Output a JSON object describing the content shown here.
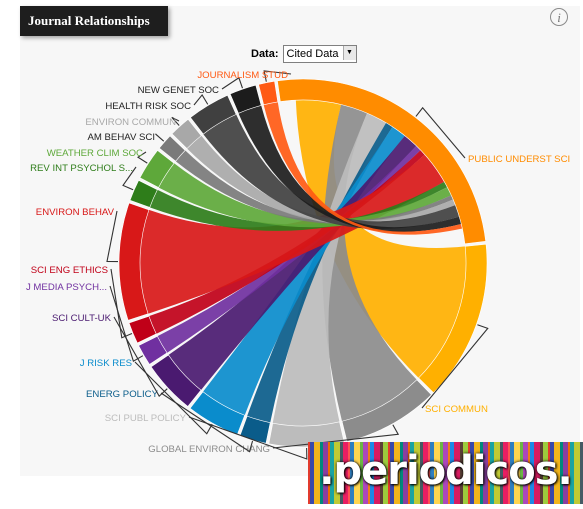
{
  "header": {
    "title": "Journal Relationships",
    "info_icon": "info-icon",
    "info_symbol": "i"
  },
  "controls": {
    "data_label": "Data:",
    "data_value": "Cited Data"
  },
  "chart_data": {
    "type": "chord",
    "title": "Journal Relationships",
    "focus_journal": "PUBLIC UNDERST SCI",
    "groups": [
      {
        "name": "PUBLIC UNDERST SCI",
        "share": 27,
        "color": "#ff8c00"
      },
      {
        "name": "SCI COMMUN",
        "share": 15,
        "color": "#ffb000"
      },
      {
        "name": "GLOBAL ENVIRON CHANG",
        "share": 9,
        "color": "#8c8c8c"
      },
      {
        "name": "SCI PUBL POLICY",
        "share": 7,
        "color": "#bcbcbc"
      },
      {
        "name": "ENERG POLICY",
        "share": 2.5,
        "color": "#0a5c8a"
      },
      {
        "name": "J RISK RES",
        "share": 5,
        "color": "#0a8ccc"
      },
      {
        "name": "SCI CULT-UK",
        "share": 5,
        "color": "#4a1a70"
      },
      {
        "name": "J MEDIA PSYCH...",
        "share": 2,
        "color": "#7030a0"
      },
      {
        "name": "SCI ENG ETHICS",
        "share": 2,
        "color": "#c00018"
      },
      {
        "name": "ENVIRON BEHAV",
        "share": 11,
        "color": "#d81818"
      },
      {
        "name": "REV INT PSYCHOL S...",
        "share": 2,
        "color": "#2e7d1a"
      },
      {
        "name": "WEATHER CLIM SOC",
        "share": 3,
        "color": "#5ea83a"
      },
      {
        "name": "AM BEHAV SCI",
        "share": 1.5,
        "color": "#7a7a7a"
      },
      {
        "name": "ENVIRON COMMUN",
        "share": 2,
        "color": "#a8a8a8"
      },
      {
        "name": "HEALTH RISK SOC",
        "share": 4,
        "color": "#404040"
      },
      {
        "name": "NEW GENET SOC",
        "share": 2.5,
        "color": "#1c1c1c"
      },
      {
        "name": "JOURNALISM STUD",
        "share": 1.5,
        "color": "#ff5a14"
      }
    ]
  },
  "logo": {
    "text": ".periodicos."
  }
}
